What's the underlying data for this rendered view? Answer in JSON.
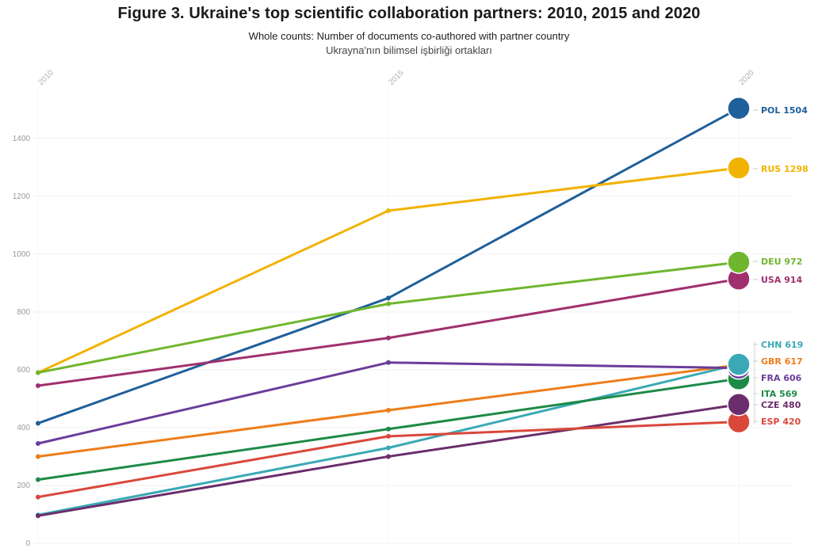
{
  "header": {
    "title": "Figure 3. Ukraine's top scientific collaboration partners: 2010, 2015 and 2020",
    "subtitle": "Whole counts: Number of documents co-authored with partner country",
    "subtitle2": "Ukrayna'nın bilimsel işbirliği ortakları"
  },
  "chart_data": {
    "type": "line",
    "title": "Figure 3. Ukraine's top scientific collaboration partners: 2010, 2015 and 2020",
    "subtitle": "Whole counts: Number of documents co-authored with partner country",
    "x": [
      "2010",
      "2015",
      "2020"
    ],
    "ylim": [
      0,
      1550
    ],
    "yticks": [
      0,
      200,
      400,
      600,
      800,
      1000,
      1200,
      1400
    ],
    "grid": true,
    "legend": "end-labels-right",
    "series": [
      {
        "name": "POL",
        "label": "POL 1504",
        "values": [
          415,
          848,
          1504
        ],
        "color": "#1f5f9a"
      },
      {
        "name": "RUS",
        "label": "RUS 1298",
        "values": [
          590,
          1150,
          1298
        ],
        "color": "#f2b200"
      },
      {
        "name": "DEU",
        "label": "DEU 972",
        "values": [
          590,
          828,
          972
        ],
        "color": "#6fb62e"
      },
      {
        "name": "USA",
        "label": "USA 914",
        "values": [
          545,
          710,
          914
        ],
        "color": "#a0306e"
      },
      {
        "name": "CHN",
        "label": "CHN 619",
        "values": [
          98,
          330,
          619
        ],
        "color": "#3aa9b5"
      },
      {
        "name": "GBR",
        "label": "GBR 617",
        "values": [
          300,
          460,
          617
        ],
        "color": "#ee7d1b"
      },
      {
        "name": "FRA",
        "label": "FRA 606",
        "values": [
          345,
          625,
          606
        ],
        "color": "#6a3d9a"
      },
      {
        "name": "ITA",
        "label": "ITA 569",
        "values": [
          220,
          395,
          569
        ],
        "color": "#1d8a46"
      },
      {
        "name": "CZE",
        "label": "CZE 480",
        "values": [
          95,
          300,
          480
        ],
        "color": "#6b2d6b"
      },
      {
        "name": "ESP",
        "label": "ESP 420",
        "values": [
          160,
          370,
          420
        ],
        "color": "#d9483b"
      }
    ]
  }
}
